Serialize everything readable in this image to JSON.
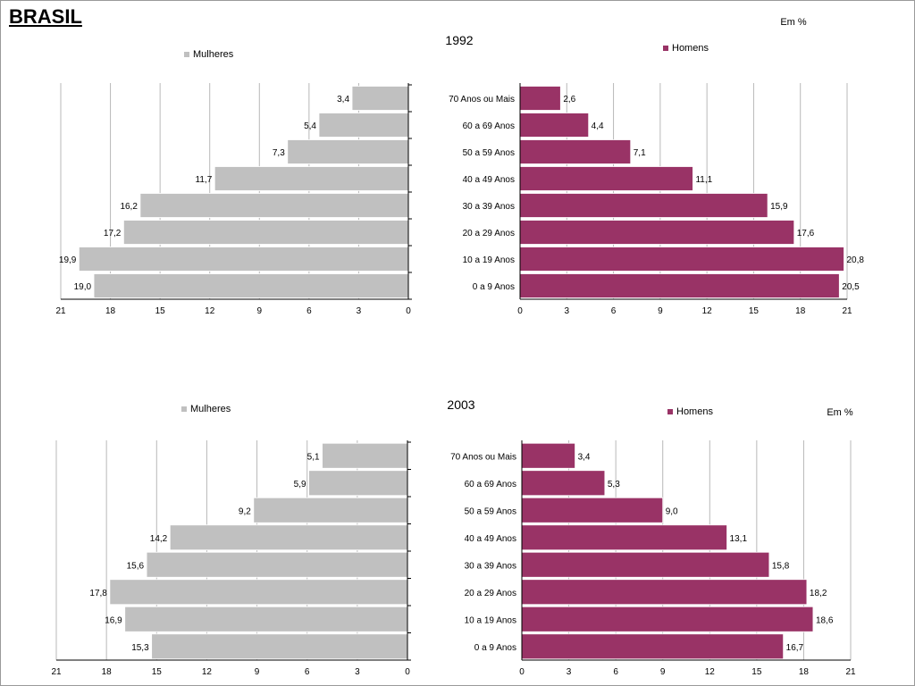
{
  "page": {
    "title": "BRASIL"
  },
  "chart_data": [
    {
      "type": "bar",
      "year": "1992",
      "unit": "Em %",
      "categories": [
        "70 Anos ou Mais",
        "60 a 69 Anos",
        "50 a 59 Anos",
        "40 a 49 Anos",
        "30 a 39 Anos",
        "20 a 29 Anos",
        "10 a 19 Anos",
        "0 a 9 Anos"
      ],
      "ticks": [
        0,
        3,
        6,
        9,
        12,
        15,
        18,
        21
      ],
      "xlim": [
        0,
        21
      ],
      "grid": true,
      "series": [
        {
          "name": "Mulheres",
          "color": "#c0c0c0",
          "values": [
            3.4,
            5.4,
            7.3,
            11.7,
            16.2,
            17.2,
            19.9,
            19.0
          ],
          "labels": [
            "3,4",
            "5,4",
            "7,3",
            "11,7",
            "16,2",
            "17,2",
            "19,9",
            "19,0"
          ],
          "tick_labels": [
            "0",
            "3",
            "6",
            "9",
            "12",
            "15",
            "18",
            "21"
          ]
        },
        {
          "name": "Homens",
          "color": "#993366",
          "values": [
            2.6,
            4.4,
            7.1,
            11.1,
            15.9,
            17.6,
            20.8,
            20.5
          ],
          "labels": [
            "2,6",
            "4,4",
            "7,1",
            "11,1",
            "15,9",
            "17,6",
            "20,8",
            "20,5"
          ],
          "tick_labels": [
            "0",
            "3",
            "6",
            "9",
            "12",
            "15",
            "18",
            "21"
          ]
        }
      ]
    },
    {
      "type": "bar",
      "year": "2003",
      "unit": "Em %",
      "categories": [
        "70 Anos ou Mais",
        "60 a 69 Anos",
        "50 a 59 Anos",
        "40 a 49 Anos",
        "30 a 39 Anos",
        "20 a 29 Anos",
        "10 a 19 Anos",
        "0 a 9 Anos"
      ],
      "ticks": [
        0,
        3,
        6,
        9,
        12,
        15,
        18,
        21
      ],
      "xlim": [
        0,
        21
      ],
      "grid": true,
      "series": [
        {
          "name": "Mulheres",
          "color": "#c0c0c0",
          "values": [
            5.1,
            5.9,
            9.2,
            14.2,
            15.6,
            17.8,
            16.9,
            15.3
          ],
          "labels": [
            "5,1",
            "5,9",
            "9,2",
            "14,2",
            "15,6",
            "17,8",
            "16,9",
            "15,3"
          ],
          "tick_labels": [
            "0",
            "3",
            "6",
            "9",
            "12",
            "15",
            "18",
            "21"
          ]
        },
        {
          "name": "Homens",
          "color": "#993366",
          "values": [
            3.4,
            5.3,
            9.0,
            13.1,
            15.8,
            18.2,
            18.6,
            16.7
          ],
          "labels": [
            "3,4",
            "5,3",
            "9,0",
            "13,1",
            "15,8",
            "18,2",
            "18,6",
            "16,7"
          ],
          "tick_labels": [
            "0",
            "3",
            "6",
            "9",
            "12",
            "15",
            "18",
            "21"
          ]
        }
      ]
    }
  ]
}
